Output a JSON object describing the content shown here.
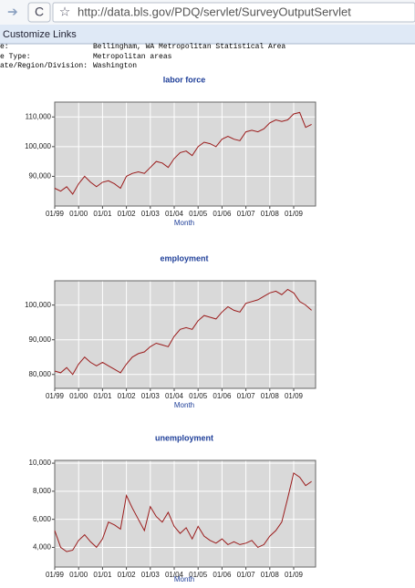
{
  "browser": {
    "url": "http://data.bls.gov/PDQ/servlet/SurveyOutputServlet"
  },
  "bookmarks": {
    "link": "Customize Links"
  },
  "header": {
    "rows": [
      [
        "e:",
        "Bellingham, WA Metropolitan Statistical Area"
      ],
      [
        "e Type:",
        "Metropolitan areas"
      ],
      [
        "ate/Region/Division:",
        "Washington"
      ]
    ]
  },
  "chart_data": [
    {
      "type": "line",
      "title": "labor force",
      "x_label": "Month",
      "categories": [
        "01/99",
        null,
        null,
        null,
        "01/00",
        null,
        null,
        null,
        "01/01",
        null,
        null,
        null,
        "01/02",
        null,
        null,
        null,
        "01/03",
        null,
        null,
        null,
        "01/04",
        null,
        null,
        null,
        "01/05",
        null,
        null,
        null,
        "01/06",
        null,
        null,
        null,
        "01/07",
        null,
        null,
        null,
        "01/08",
        null,
        null,
        null,
        "01/09",
        null,
        null,
        null
      ],
      "values": [
        86000,
        85000,
        86500,
        84000,
        87500,
        90000,
        88000,
        86500,
        88000,
        88500,
        87500,
        86000,
        90000,
        91000,
        91500,
        91000,
        93000,
        95000,
        94500,
        93000,
        96000,
        98000,
        98500,
        97000,
        100000,
        101500,
        101000,
        100000,
        102500,
        103500,
        102500,
        102000,
        105000,
        105500,
        105000,
        106000,
        108000,
        109000,
        108500,
        109000,
        111000,
        111500,
        106500,
        107500
      ],
      "color": "#9b1b1b",
      "ylim": [
        80000,
        115000
      ],
      "yticks": [
        {
          "value": 90000,
          "label": "90,000"
        },
        {
          "value": 100000,
          "label": "100,000"
        },
        {
          "value": 110000,
          "label": "110,000"
        }
      ],
      "grid": true
    },
    {
      "type": "line",
      "title": "employment",
      "x_label": "Month",
      "categories": [
        "01/99",
        null,
        null,
        null,
        "01/00",
        null,
        null,
        null,
        "01/01",
        null,
        null,
        null,
        "01/02",
        null,
        null,
        null,
        "01/03",
        null,
        null,
        null,
        "01/04",
        null,
        null,
        null,
        "01/05",
        null,
        null,
        null,
        "01/06",
        null,
        null,
        null,
        "01/07",
        null,
        null,
        null,
        "01/08",
        null,
        null,
        null,
        "01/09",
        null,
        null,
        null
      ],
      "values": [
        81000,
        80500,
        82000,
        80000,
        83000,
        85000,
        83500,
        82500,
        83500,
        82500,
        81500,
        80500,
        83000,
        85000,
        86000,
        86500,
        88000,
        89000,
        88500,
        88000,
        91000,
        93000,
        93500,
        93000,
        95500,
        97000,
        96500,
        96000,
        98000,
        99500,
        98500,
        98000,
        100500,
        101000,
        101500,
        102500,
        103500,
        104000,
        103000,
        104500,
        103500,
        101000,
        100000,
        98500
      ],
      "color": "#9b1b1b",
      "ylim": [
        76000,
        107000
      ],
      "yticks": [
        {
          "value": 80000,
          "label": "80,000"
        },
        {
          "value": 90000,
          "label": "90,000"
        },
        {
          "value": 100000,
          "label": "100,000"
        }
      ],
      "grid": true
    },
    {
      "type": "line",
      "title": "unemployment",
      "x_label": "Month",
      "categories": [
        "01/99",
        null,
        null,
        null,
        "01/00",
        null,
        null,
        null,
        "01/01",
        null,
        null,
        null,
        "01/02",
        null,
        null,
        null,
        "01/03",
        null,
        null,
        null,
        "01/04",
        null,
        null,
        null,
        "01/05",
        null,
        null,
        null,
        "01/06",
        null,
        null,
        null,
        "01/07",
        null,
        null,
        null,
        "01/08",
        null,
        null,
        null,
        "01/09",
        null,
        null,
        null
      ],
      "values": [
        5200,
        4000,
        3700,
        3800,
        4500,
        4900,
        4400,
        4000,
        4600,
        5800,
        5600,
        5300,
        7700,
        6800,
        6000,
        5200,
        6900,
        6200,
        5800,
        6500,
        5500,
        5000,
        5400,
        4600,
        5500,
        4800,
        4500,
        4300,
        4600,
        4200,
        4400,
        4200,
        4300,
        4500,
        4000,
        4200,
        4800,
        5200,
        5800,
        7500,
        9300,
        9000,
        8400,
        8700
      ],
      "color": "#9b1b1b",
      "ylim": [
        2600,
        10200
      ],
      "yticks": [
        {
          "value": 4000,
          "label": "4,000"
        },
        {
          "value": 6000,
          "label": "6,000"
        },
        {
          "value": 8000,
          "label": "8,000"
        },
        {
          "value": 10000,
          "label": "10,000"
        }
      ],
      "grid": true
    }
  ]
}
